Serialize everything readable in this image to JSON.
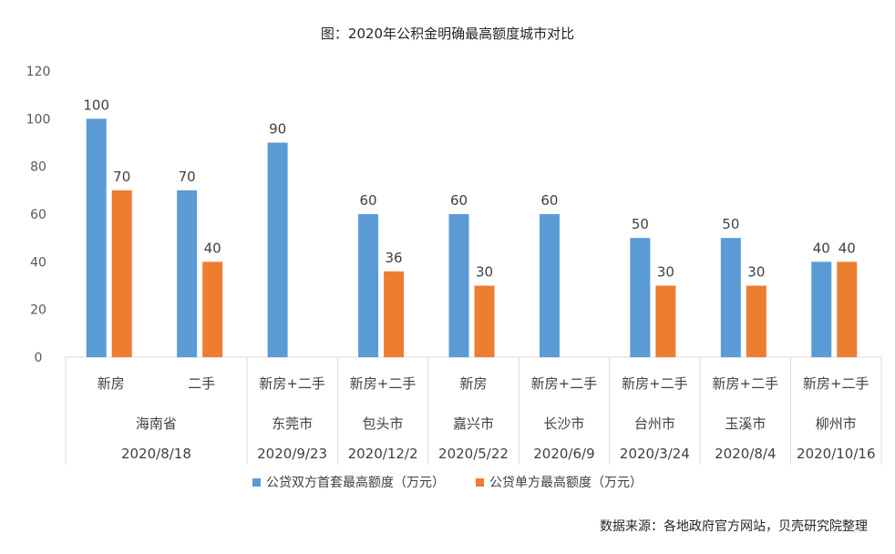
{
  "chart_data": {
    "type": "bar",
    "title": "图：2020年公积金明确最高额度城市对比",
    "ylim": [
      0,
      120
    ],
    "yticks": [
      0,
      20,
      40,
      60,
      80,
      100,
      120
    ],
    "groups": [
      {
        "category": "新房",
        "city": "海南省",
        "date": "2020/8/18",
        "double": 100,
        "single": 70
      },
      {
        "category": "二手",
        "city": "海南省",
        "date": "2020/8/18",
        "double": 70,
        "single": 40
      },
      {
        "category": "新房+二手",
        "city": "东莞市",
        "date": "2020/9/23",
        "double": 90,
        "single": null
      },
      {
        "category": "新房+二手",
        "city": "包头市",
        "date": "2020/12/2",
        "double": 60,
        "single": 36
      },
      {
        "category": "新房",
        "city": "嘉兴市",
        "date": "2020/5/22",
        "double": 60,
        "single": 30
      },
      {
        "category": "新房+二手",
        "city": "长沙市",
        "date": "2020/6/9",
        "double": 60,
        "single": null
      },
      {
        "category": "新房+二手",
        "city": "台州市",
        "date": "2020/3/24",
        "double": 50,
        "single": 30
      },
      {
        "category": "新房+二手",
        "city": "玉溪市",
        "date": "2020/8/4",
        "double": 50,
        "single": 30
      },
      {
        "category": "新房+二手",
        "city": "柳州市",
        "date": "2020/10/16",
        "double": 40,
        "single": 40
      }
    ],
    "series": [
      {
        "name": "公贷双方首套最高额度（万元）",
        "key": "double",
        "color": "#5B9BD5"
      },
      {
        "name": "公贷单方最高额度（万元）",
        "key": "single",
        "color": "#ED7D31"
      }
    ],
    "region_groups": [
      {
        "city": "海南省",
        "date": "2020/8/18",
        "span": 2
      },
      {
        "city": "东莞市",
        "date": "2020/9/23",
        "span": 1
      },
      {
        "city": "包头市",
        "date": "2020/12/2",
        "span": 1
      },
      {
        "city": "嘉兴市",
        "date": "2020/5/22",
        "span": 1
      },
      {
        "city": "长沙市",
        "date": "2020/6/9",
        "span": 1
      },
      {
        "city": "台州市",
        "date": "2020/3/24",
        "span": 1
      },
      {
        "city": "玉溪市",
        "date": "2020/8/4",
        "span": 1
      },
      {
        "city": "柳州市",
        "date": "2020/10/16",
        "span": 1
      }
    ]
  },
  "legend": {
    "double_label": "公贷双方首套最高额度（万元）",
    "single_label": "公贷单方最高额度（万元）"
  },
  "source": "数据来源：各地政府官方网站，贝壳研究院整理"
}
